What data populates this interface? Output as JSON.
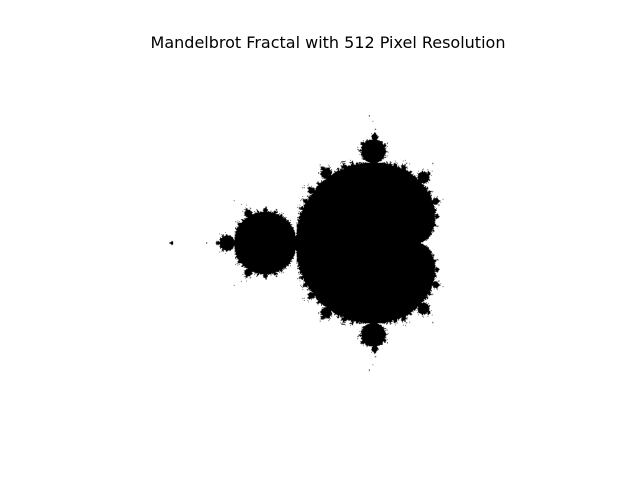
{
  "figure": {
    "title": "Mandelbrot Fractal with 512 Pixel Resolution"
  },
  "fractal": {
    "real_range": [
      -2.0,
      1.0
    ],
    "imag_range": [
      -1.5,
      1.5
    ],
    "resolution": 512,
    "max_iterations": 64,
    "set_color": "#000000",
    "background_color": "#ffffff"
  }
}
